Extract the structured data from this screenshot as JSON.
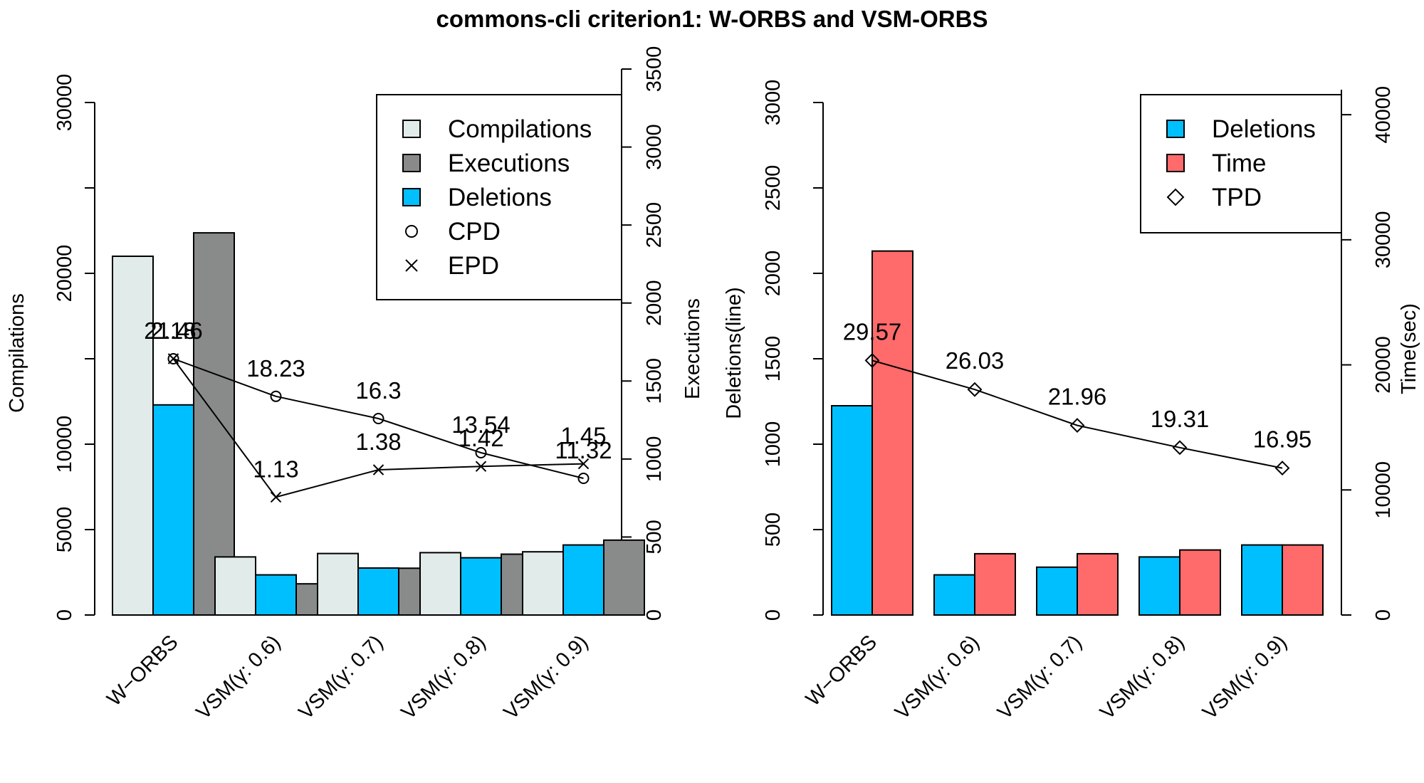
{
  "chart_data": [
    {
      "type": "bar",
      "title": "commons-cli criterion1: W-ORBS and VSM-ORBS",
      "categories": [
        "W−ORBS",
        "VSM(γ: 0.6)",
        "VSM(γ: 0.7)",
        "VSM(γ: 0.8)",
        "VSM(γ: 0.9)"
      ],
      "ylabel_left": "Compilations",
      "ylabel_right": "Executions",
      "ylim_left": [
        0,
        30000
      ],
      "ylim_right": [
        0,
        3500
      ],
      "yticks_left": [
        "0",
        "5000",
        "10000",
        "20000",
        "30000"
      ],
      "yticks_left_values": [
        0,
        5000,
        10000,
        15000,
        20000,
        25000,
        30000
      ],
      "yticks_right": [
        "0",
        "500",
        "1000",
        "1500",
        "2000",
        "2500",
        "3000",
        "3500"
      ],
      "series": [
        {
          "name": "Compilations",
          "axis": "left",
          "color": "#e0ebea",
          "values": [
            21000,
            3400,
            3600,
            3650,
            3700
          ]
        },
        {
          "name": "Deletions",
          "axis": "left",
          "color": "#00bfff",
          "values": [
            12300,
            2350,
            2750,
            3350,
            4100
          ]
        },
        {
          "name": "Executions",
          "axis": "right",
          "color": "#888b89",
          "values": [
            2450,
            200,
            300,
            390,
            480
          ]
        }
      ],
      "lines": [
        {
          "name": "CPD",
          "marker": "circle",
          "axis": "left",
          "positions": [
            15000,
            12800,
            11500,
            9500,
            8000
          ],
          "labels": [
            "21.46",
            "18.23",
            "16.3",
            "13.54",
            "11.32"
          ]
        },
        {
          "name": "EPD",
          "marker": "x",
          "axis": "left",
          "positions": [
            15000,
            6900,
            8500,
            8700,
            8850
          ],
          "labels": [
            "2.18",
            "1.13",
            "1.38",
            "1.42",
            "1.45"
          ]
        }
      ],
      "legend": [
        "Compilations",
        "Executions",
        "Deletions",
        "CPD",
        "EPD"
      ],
      "legend_position": "top-right"
    },
    {
      "type": "bar",
      "categories": [
        "W−ORBS",
        "VSM(γ: 0.6)",
        "VSM(γ: 0.7)",
        "VSM(γ: 0.8)",
        "VSM(γ: 0.9)"
      ],
      "ylabel_left": "Deletions(line)",
      "ylabel_right": "Time(sec)",
      "ylim_left": [
        0,
        3000
      ],
      "ylim_right": [
        0,
        42000
      ],
      "yticks_left": [
        "0",
        "500",
        "1000",
        "1500",
        "2000",
        "2500",
        "3000"
      ],
      "yticks_right": [
        "0",
        "10000",
        "20000",
        "30000",
        "40000"
      ],
      "series": [
        {
          "name": "Deletions",
          "axis": "left",
          "color": "#00bfff",
          "values": [
            1225,
            235,
            280,
            340,
            410
          ]
        },
        {
          "name": "Time",
          "axis": "right",
          "color": "#ff6a6a",
          "values": [
            29100,
            4900,
            4900,
            5200,
            5600
          ]
        }
      ],
      "lines": [
        {
          "name": "TPD",
          "marker": "diamond",
          "axis": "left",
          "positions": [
            1490,
            1320,
            1110,
            980,
            860
          ],
          "labels": [
            "29.57",
            "26.03",
            "21.96",
            "19.31",
            "16.95"
          ]
        }
      ],
      "legend": [
        "Deletions",
        "Time",
        "TPD"
      ],
      "legend_position": "top-right"
    }
  ]
}
